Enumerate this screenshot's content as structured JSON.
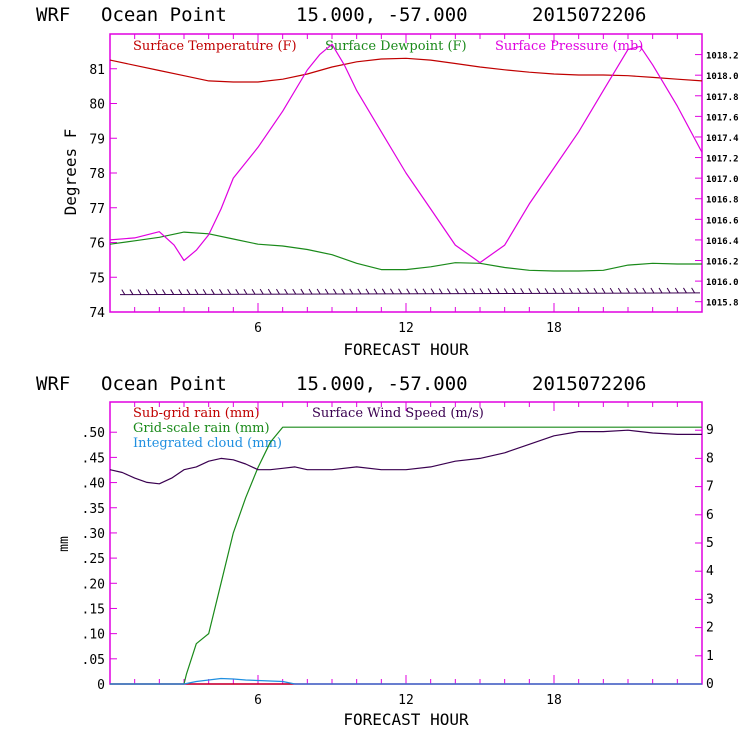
{
  "colors": {
    "temperature": "#c00000",
    "dewpoint": "#1a8a1a",
    "pressure": "#e000e0",
    "subgrid": "#c00000",
    "gridscale": "#1a8a1a",
    "cloud": "#1f8fe0",
    "wind": "#3a0050",
    "axis": "#e000e0"
  },
  "panels": [
    {
      "header": {
        "model": "WRF",
        "location": "Ocean Point",
        "coords": "15.000, -57.000",
        "run": "2015072206"
      },
      "legend": [
        "Surface Temperature (F)",
        "Surface Dewpoint (F)",
        "Surface Pressure (mb)"
      ],
      "ylabel": "Degrees F",
      "xlabel": "FORECAST HOUR",
      "left_ticks": [
        "74",
        "75",
        "76",
        "77",
        "78",
        "79",
        "80",
        "81"
      ],
      "right_ticks": [
        "1015.8",
        "1016.0",
        "1016.2",
        "1016.4",
        "1016.6",
        "1016.8",
        "1017.0",
        "1017.2",
        "1017.4",
        "1017.6",
        "1017.8",
        "1018.0",
        "1018.2"
      ],
      "x_ticks": [
        "6",
        "12",
        "18"
      ]
    },
    {
      "header": {
        "model": "WRF",
        "location": "Ocean Point",
        "coords": "15.000, -57.000",
        "run": "2015072206"
      },
      "legend": [
        "Sub-grid rain (mm)",
        "Surface Wind Speed (m/s)",
        "Grid-scale rain (mm)",
        "Integrated cloud (mm)"
      ],
      "ylabel": "mm",
      "xlabel": "FORECAST HOUR",
      "left_ticks": [
        "0",
        ".05",
        ".10",
        ".15",
        ".20",
        ".25",
        ".30",
        ".35",
        ".40",
        ".45",
        ".50"
      ],
      "right_ticks": [
        "0",
        "1",
        "2",
        "3",
        "4",
        "5",
        "6",
        "7",
        "8",
        "9"
      ],
      "x_ticks": [
        "6",
        "12",
        "18"
      ]
    }
  ],
  "chart_data": [
    {
      "type": "line",
      "xlabel": "FORECAST HOUR",
      "ylabel": "Degrees F",
      "xlim": [
        0,
        24
      ],
      "ylim": [
        74,
        82
      ],
      "y2lim": [
        1015.7,
        1018.4
      ],
      "legend": "top",
      "grid": false,
      "series": [
        {
          "name": "Surface Temperature (F)",
          "axis": "left",
          "x": [
            0,
            1,
            2,
            3,
            4,
            5,
            6,
            7,
            8,
            9,
            10,
            11,
            12,
            13,
            14,
            15,
            16,
            17,
            18,
            19,
            20,
            21,
            22,
            23,
            24
          ],
          "values": [
            81.25,
            81.1,
            80.95,
            80.8,
            80.65,
            80.62,
            80.62,
            80.7,
            80.85,
            81.05,
            81.2,
            81.28,
            81.3,
            81.25,
            81.15,
            81.05,
            80.97,
            80.9,
            80.85,
            80.82,
            80.82,
            80.8,
            80.75,
            80.7,
            80.65
          ]
        },
        {
          "name": "Surface Dewpoint (F)",
          "axis": "left",
          "x": [
            0,
            1,
            2,
            3,
            4,
            5,
            6,
            7,
            8,
            9,
            10,
            11,
            12,
            13,
            14,
            15,
            16,
            17,
            18,
            19,
            20,
            21,
            22,
            23,
            24
          ],
          "values": [
            75.95,
            76.05,
            76.15,
            76.3,
            76.25,
            76.1,
            75.95,
            75.9,
            75.8,
            75.65,
            75.4,
            75.22,
            75.22,
            75.3,
            75.42,
            75.4,
            75.28,
            75.2,
            75.18,
            75.18,
            75.2,
            75.35,
            75.4,
            75.38,
            75.38
          ]
        },
        {
          "name": "Surface Pressure (mb)",
          "axis": "right",
          "x": [
            0,
            1,
            2,
            2.6,
            3,
            3.5,
            4,
            4.5,
            5,
            6,
            7,
            8,
            8.5,
            9,
            9.5,
            10,
            11,
            12,
            13,
            14,
            15,
            16,
            17,
            18,
            19,
            20,
            21,
            21.5,
            22,
            23,
            24
          ],
          "values": [
            1016.4,
            1016.42,
            1016.48,
            1016.35,
            1016.2,
            1016.3,
            1016.45,
            1016.7,
            1017.0,
            1017.3,
            1017.65,
            1018.05,
            1018.2,
            1018.3,
            1018.1,
            1017.85,
            1017.45,
            1017.05,
            1016.7,
            1016.35,
            1016.18,
            1016.35,
            1016.75,
            1017.1,
            1017.45,
            1017.85,
            1018.25,
            1018.28,
            1018.1,
            1017.7,
            1017.25
          ]
        },
        {
          "name": "Surface Wind Barbs",
          "axis": "left",
          "x": [
            0,
            24
          ],
          "values": [
            74.5,
            74.55
          ]
        }
      ]
    },
    {
      "type": "line",
      "xlabel": "FORECAST HOUR",
      "ylabel": "mm",
      "xlim": [
        0,
        24
      ],
      "ylim": [
        0,
        0.56
      ],
      "y2lim": [
        0,
        10
      ],
      "legend": "top",
      "grid": false,
      "series": [
        {
          "name": "Sub-grid rain (mm)",
          "axis": "left",
          "x": [
            0,
            24
          ],
          "values": [
            0,
            0
          ]
        },
        {
          "name": "Grid-scale rain (mm)",
          "axis": "left",
          "x": [
            0,
            3,
            3.1,
            3.5,
            4,
            4.5,
            5,
            5.5,
            6,
            6.5,
            7,
            7.5,
            24
          ],
          "values": [
            0,
            0,
            0.02,
            0.08,
            0.1,
            0.2,
            0.3,
            0.37,
            0.43,
            0.48,
            0.51,
            0.51,
            0.51
          ]
        },
        {
          "name": "Integrated cloud (mm)",
          "axis": "left",
          "x": [
            0,
            3,
            3.5,
            4,
            4.5,
            5,
            5.5,
            6,
            6.5,
            7,
            7.5,
            24
          ],
          "values": [
            0,
            0,
            0.005,
            0.008,
            0.011,
            0.01,
            0.008,
            0.007,
            0.006,
            0.005,
            0,
            0
          ]
        },
        {
          "name": "Surface Wind Speed (m/s)",
          "axis": "right",
          "x": [
            0,
            0.5,
            1,
            1.5,
            2,
            2.5,
            3,
            3.5,
            4,
            4.5,
            5,
            5.5,
            6,
            6.5,
            7,
            7.5,
            8,
            9,
            10,
            11,
            12,
            13,
            14,
            15,
            16,
            17,
            18,
            19,
            20,
            21,
            22,
            23,
            24
          ],
          "values": [
            7.6,
            7.5,
            7.3,
            7.15,
            7.1,
            7.3,
            7.6,
            7.7,
            7.9,
            8.0,
            7.95,
            7.8,
            7.6,
            7.6,
            7.65,
            7.7,
            7.6,
            7.6,
            7.7,
            7.6,
            7.6,
            7.7,
            7.9,
            8.0,
            8.2,
            8.5,
            8.8,
            8.95,
            8.95,
            9.0,
            8.9,
            8.85,
            8.85
          ]
        }
      ]
    }
  ]
}
